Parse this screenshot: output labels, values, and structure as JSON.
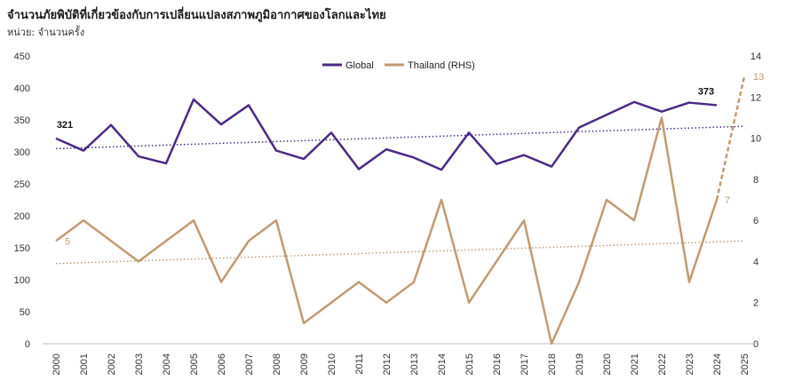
{
  "title": "จำนวนภัยพิบัติที่เกี่ยวข้องกับการเปลี่ยนแปลงสภาพภูมิอากาศของโลกและไทย",
  "unit_label": "หน่วย: จำนวนครั้ง",
  "colors": {
    "global": "#4b2a84",
    "thailand": "#c19a73",
    "axis": "#bfbfbf"
  },
  "chart_data": {
    "type": "line",
    "categories": [
      "2000",
      "2001",
      "2002",
      "2003",
      "2004",
      "2005",
      "2006",
      "2007",
      "2008",
      "2009",
      "2010",
      "2011",
      "2012",
      "2013",
      "2014",
      "2015",
      "2016",
      "2017",
      "2018",
      "2019",
      "2020",
      "2021",
      "2022",
      "2023",
      "2024",
      "2025"
    ],
    "left_axis": {
      "min": 0,
      "max": 450,
      "ticks": [
        0,
        50,
        100,
        150,
        200,
        250,
        300,
        350,
        400,
        450
      ]
    },
    "right_axis": {
      "min": 0,
      "max": 14,
      "ticks": [
        0,
        2,
        4,
        6,
        8,
        10,
        12,
        14
      ]
    },
    "series": [
      {
        "name": "Global",
        "axis": "left",
        "values": [
          321,
          302,
          342,
          293,
          282,
          382,
          343,
          373,
          302,
          289,
          330,
          273,
          304,
          291,
          272,
          330,
          281,
          295,
          277,
          338,
          358,
          378,
          363,
          377,
          373,
          null
        ],
        "trendline": {
          "start": 305,
          "end": 340
        }
      },
      {
        "name": "Thailand (RHS)",
        "axis": "right",
        "values": [
          5,
          6,
          5,
          4,
          5,
          6,
          3,
          5,
          6,
          1,
          2,
          3,
          2,
          3,
          7,
          2,
          4,
          6,
          0,
          3,
          7,
          6,
          11,
          3,
          7,
          13
        ],
        "projected_from_index": 24,
        "trendline": {
          "start": 3.9,
          "end": 5.0
        }
      }
    ],
    "annotations": [
      {
        "series": "Global",
        "category": "2000",
        "label": "321"
      },
      {
        "series": "Global",
        "category": "2024",
        "label": "373"
      },
      {
        "series": "Thailand (RHS)",
        "category": "2000",
        "label": "5"
      },
      {
        "series": "Thailand (RHS)",
        "category": "2024",
        "label": "7"
      },
      {
        "series": "Thailand (RHS)",
        "category": "2025",
        "label": "13"
      }
    ],
    "legend": [
      "Global",
      "Thailand (RHS)"
    ],
    "legend_position": "top-center"
  }
}
